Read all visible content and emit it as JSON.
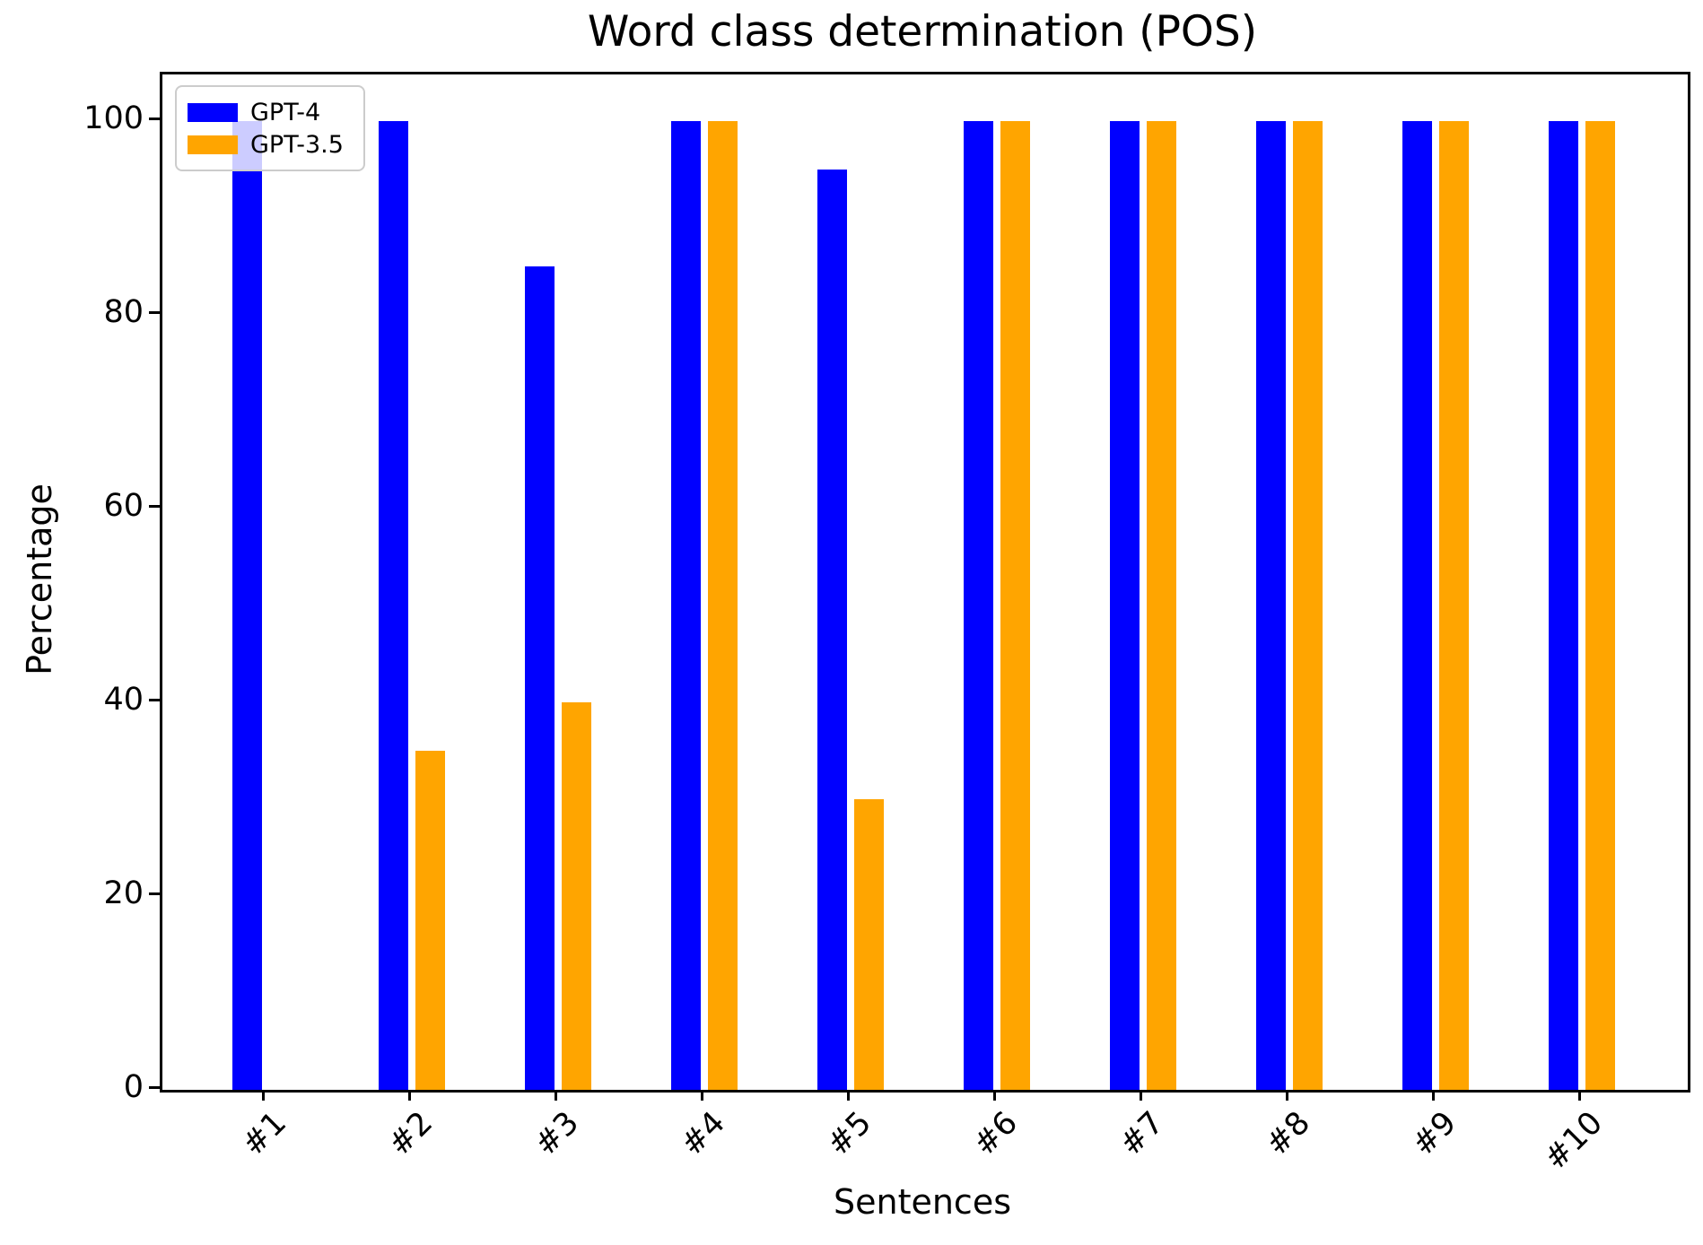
{
  "chart_data": {
    "type": "bar",
    "title": "Word class determination (POS)",
    "xlabel": "Sentences",
    "ylabel": "Percentage",
    "categories": [
      "#1",
      "#2",
      "#3",
      "#4",
      "#5",
      "#6",
      "#7",
      "#8",
      "#9",
      "#10"
    ],
    "series": [
      {
        "name": "GPT-4",
        "color": "#0000FF",
        "values": [
          100,
          100,
          85,
          100,
          95,
          100,
          100,
          100,
          100,
          100
        ]
      },
      {
        "name": "GPT-3.5",
        "color": "#FFA500",
        "values": [
          0,
          35,
          40,
          100,
          30,
          100,
          100,
          100,
          100,
          100
        ]
      }
    ],
    "yticks": [
      0,
      20,
      40,
      60,
      80,
      100
    ],
    "ylim": [
      0,
      104.8
    ],
    "grid": false,
    "legend_position": "upper left"
  }
}
